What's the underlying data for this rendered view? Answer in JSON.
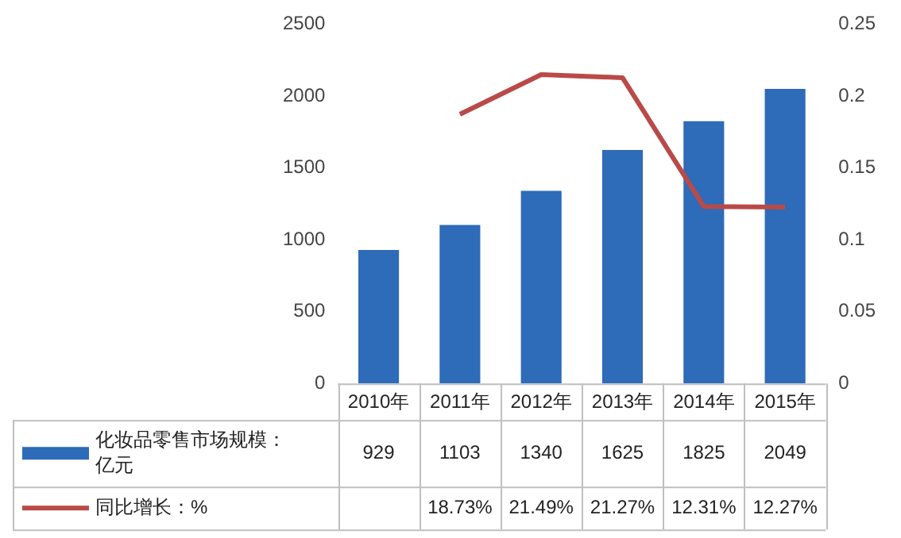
{
  "chart_data": {
    "type": "bar",
    "categories": [
      "2010年",
      "2011年",
      "2012年",
      "2013年",
      "2014年",
      "2015年"
    ],
    "series": [
      {
        "name": "化妆品零售市场规模：亿元",
        "color": "#2e6bb8",
        "values": [
          929,
          1103,
          1340,
          1625,
          1825,
          2049
        ],
        "value_labels": [
          "929",
          "1103",
          "1340",
          "1625",
          "1825",
          "2049"
        ]
      },
      {
        "name": "同比增长：%",
        "type": "line",
        "axis": "y2",
        "color": "#b94a48",
        "values": [
          null,
          0.1873,
          0.2149,
          0.2127,
          0.1231,
          0.1227
        ],
        "value_labels": [
          null,
          "18.73%",
          "21.49%",
          "21.27%",
          "12.31%",
          "12.27%"
        ]
      }
    ],
    "ylim": [
      0,
      2500
    ],
    "yticks": [
      0,
      500,
      1000,
      1500,
      2000,
      2500
    ],
    "y2lim": [
      0,
      0.25
    ],
    "y2ticks": [
      0,
      0.05,
      0.1,
      0.15,
      0.2,
      0.25
    ],
    "grid": false,
    "legend": "bottom"
  }
}
